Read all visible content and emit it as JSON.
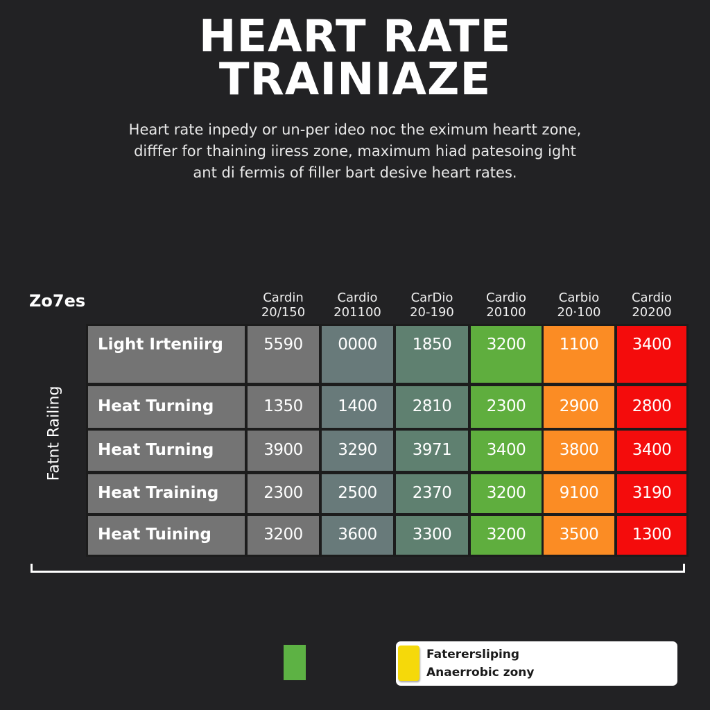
{
  "title": {
    "line1": "HEART RATE",
    "line2": "TRAINIAZE"
  },
  "subtitle": {
    "line1": "Heart rate inpedy or un-per ideo noc the eximum heartt zone,",
    "line2": "difffer for thaining iiress zone, maximum hiad patesoing ight",
    "line3": "ant di fermis of filler bart desive heart rates."
  },
  "zones_label": "Zo7es",
  "y_axis_label": "Fatnt Railing",
  "colors": {
    "background": "#222224",
    "col1": "#747474",
    "col2": "#687a7a",
    "col3": "#5f8070",
    "col4": "#5fae3e",
    "col5": "#fb8c24",
    "col6": "#f40c0c",
    "label_col": "#747474",
    "legend_green": "#5db244",
    "legend_yellow": "#f5d90a"
  },
  "columns": [
    {
      "name": "Cardin",
      "range": "20/150"
    },
    {
      "name": "Cardio",
      "range": "201100"
    },
    {
      "name": "CarDio",
      "range": "20-190"
    },
    {
      "name": "Cardio",
      "range": "20100"
    },
    {
      "name": "Carbio",
      "range": "20·100"
    },
    {
      "name": "Cardio",
      "range": "20200"
    }
  ],
  "rows": [
    {
      "label": "Light Irteniirg",
      "values": [
        "5590",
        "0000",
        "1850",
        "3200",
        "1100",
        "3400"
      ]
    },
    {
      "label": "Heat Turning",
      "values": [
        "1350",
        "1400",
        "2810",
        "2300",
        "2900",
        "2800"
      ]
    },
    {
      "label": "Heat Turning",
      "values": [
        "3900",
        "3290",
        "3971",
        "3400",
        "3800",
        "3400"
      ]
    },
    {
      "label": "Heat Training",
      "values": [
        "2300",
        "2500",
        "2370",
        "3200",
        "9100",
        "3190"
      ]
    },
    {
      "label": "Heat Tuining",
      "values": [
        "3200",
        "3600",
        "3300",
        "3200",
        "3500",
        "1300"
      ]
    }
  ],
  "legend": {
    "items": [
      {
        "color": "#5db244",
        "label": ""
      },
      {
        "color": "#f5d90a",
        "label": "Faterersliping"
      }
    ],
    "line1": "Faterersliping",
    "line2": "Anaerrobic zony"
  },
  "chart_data": {
    "type": "table",
    "title": "HEART RATE TRAINIAZE",
    "subtitle": "Heart rate inpedy or un-per ideo noc the eximum heartt zone, difffer for thaining iiress zone, maximum hiad patesoing ight ant di fermis of filler bart desive heart rates.",
    "xlabel": "Zo7es",
    "ylabel": "Fatnt Railing",
    "categories": [
      "Cardin 20/150",
      "Cardio 201100",
      "CarDio 20-190",
      "Cardio 20100",
      "Carbio 20·100",
      "Cardio 20200"
    ],
    "row_labels": [
      "Light Irteniirg",
      "Heat Turning",
      "Heat Turning",
      "Heat Training",
      "Heat Tuining"
    ],
    "series": [
      {
        "name": "Light Irteniirg",
        "values": [
          5590,
          0,
          1850,
          3200,
          1100,
          3400
        ]
      },
      {
        "name": "Heat Turning",
        "values": [
          1350,
          1400,
          2810,
          2300,
          2900,
          2800
        ]
      },
      {
        "name": "Heat Turning",
        "values": [
          3900,
          3290,
          3971,
          3400,
          3800,
          3400
        ]
      },
      {
        "name": "Heat Training",
        "values": [
          2300,
          2500,
          2370,
          3200,
          9100,
          3190
        ]
      },
      {
        "name": "Heat Tuining",
        "values": [
          3200,
          3600,
          3300,
          3200,
          3500,
          1300
        ]
      }
    ],
    "column_colors": [
      "#747474",
      "#687a7a",
      "#5f8070",
      "#5fae3e",
      "#fb8c24",
      "#f40c0c"
    ],
    "legend": [
      "Faterersliping",
      "Anaerrobic zony"
    ],
    "legend_position": "bottom-right",
    "grid": true
  }
}
